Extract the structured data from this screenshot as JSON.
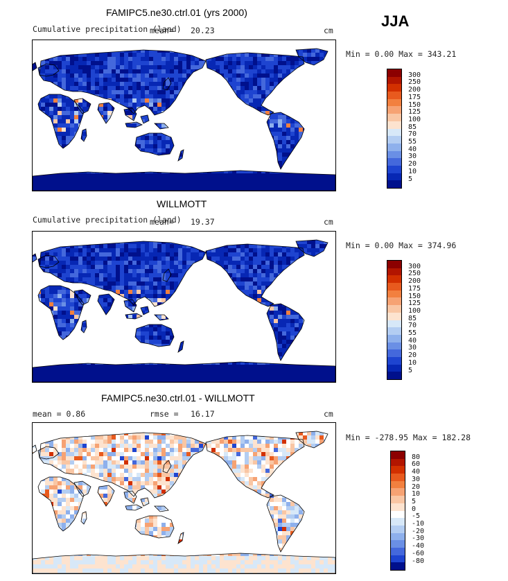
{
  "season": "JJA",
  "colors": {
    "ocean": "#ffffff",
    "coast": "#000000"
  },
  "panels": [
    {
      "title": "FAMIPC5.ne30.ctrl.01 (yrs 2000)",
      "subtitle_left": "Cumulative precipitation (land)",
      "mean_label": "mean=",
      "mean_value": "20.23",
      "units": "cm",
      "minmax": "Min =   0.00 Max = 343.21",
      "colorbar_labels": [
        "300",
        "250",
        "200",
        "175",
        "150",
        "125",
        "100",
        "85",
        "70",
        "55",
        "40",
        "30",
        "20",
        "10",
        "5"
      ],
      "colorbar_colors": [
        "#8c0000",
        "#b21500",
        "#d23000",
        "#e85a1e",
        "#f2803f",
        "#f6a273",
        "#f9c6a4",
        "#fde3cf",
        "#d7e8f8",
        "#b3cdf2",
        "#8eb0ec",
        "#6a8fe5",
        "#4468dc",
        "#1e44d0",
        "#0727b4",
        "#00108c"
      ],
      "style": "abs"
    },
    {
      "title": "WILLMOTT",
      "subtitle_left": "Cumulative precipitation (land)",
      "mean_label": "mean=",
      "mean_value": "19.37",
      "units": "cm",
      "minmax": "Min =   0.00 Max = 374.96",
      "colorbar_labels": [
        "300",
        "250",
        "200",
        "175",
        "150",
        "125",
        "100",
        "85",
        "70",
        "55",
        "40",
        "30",
        "20",
        "10",
        "5"
      ],
      "colorbar_colors": [
        "#8c0000",
        "#b21500",
        "#d23000",
        "#e85a1e",
        "#f2803f",
        "#f6a273",
        "#f9c6a4",
        "#fde3cf",
        "#d7e8f8",
        "#b3cdf2",
        "#8eb0ec",
        "#6a8fe5",
        "#4468dc",
        "#1e44d0",
        "#0727b4",
        "#00108c"
      ],
      "style": "abs"
    },
    {
      "title": "FAMIPC5.ne30.ctrl.01 - WILLMOTT",
      "subtitle_left": "mean =    0.86",
      "mean_label": "rmse =",
      "mean_value": "16.17",
      "units": "cm",
      "minmax": "Min = -278.95 Max = 182.28",
      "colorbar_labels": [
        "80",
        "60",
        "40",
        "30",
        "20",
        "10",
        "5",
        "0",
        "-5",
        "-10",
        "-20",
        "-30",
        "-40",
        "-60",
        "-80"
      ],
      "colorbar_colors": [
        "#8c0000",
        "#b21500",
        "#d23000",
        "#e85a1e",
        "#f2803f",
        "#f6a273",
        "#f9c6a4",
        "#fde3cf",
        "#ffffff",
        "#d7e8f8",
        "#b3cdf2",
        "#8eb0ec",
        "#6a8fe5",
        "#4468dc",
        "#1e44d0",
        "#00108c"
      ],
      "style": "diff"
    }
  ]
}
